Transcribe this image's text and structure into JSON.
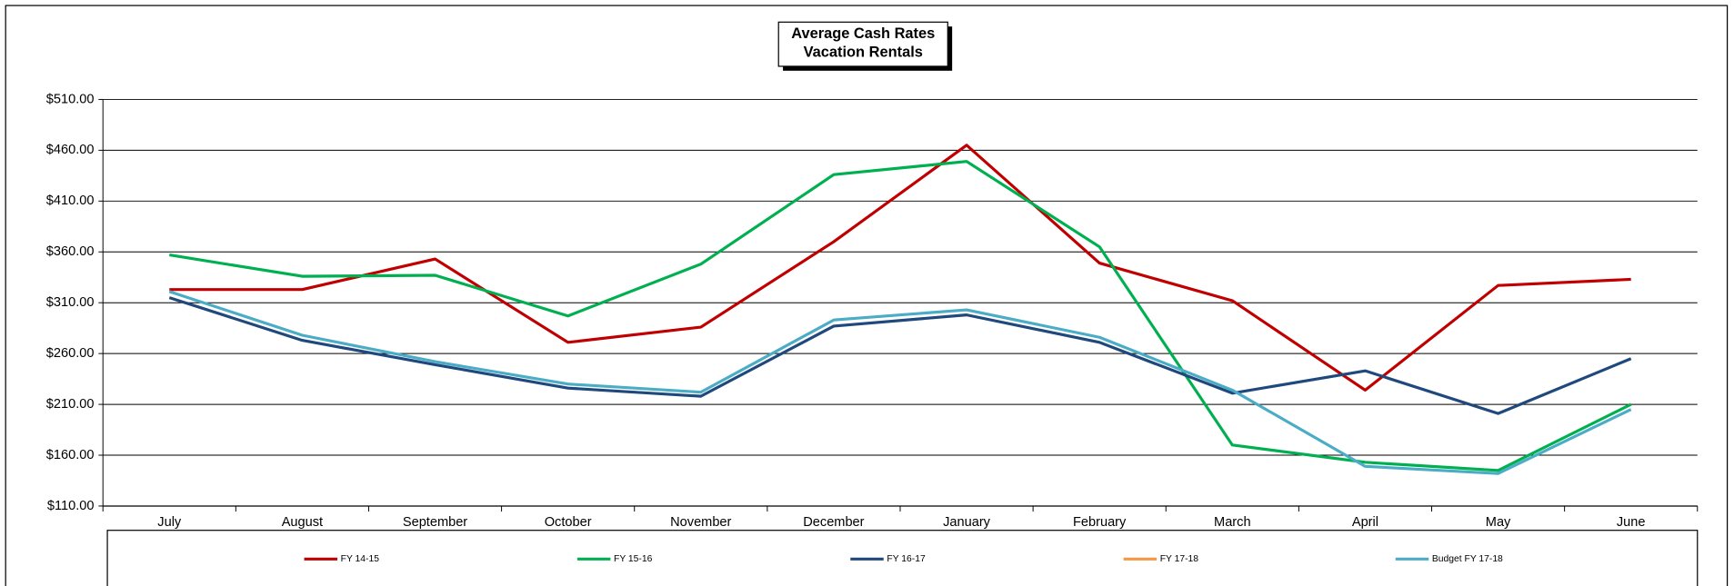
{
  "chart_data": {
    "type": "line",
    "title": "Average Cash Rates",
    "subtitle": "Vacation Rentals",
    "categories": [
      "July",
      "August",
      "September",
      "October",
      "November",
      "December",
      "January",
      "February",
      "March",
      "April",
      "May",
      "June"
    ],
    "series": [
      {
        "name": "FY 14-15",
        "color": "#c00000",
        "values": [
          323,
          323,
          353,
          271,
          286,
          370,
          465,
          349,
          312,
          224,
          327,
          333
        ]
      },
      {
        "name": "FY 15-16",
        "color": "#00b050",
        "values": [
          357,
          336,
          337,
          297,
          348,
          436,
          449,
          365,
          170,
          153,
          145,
          210
        ]
      },
      {
        "name": "FY 16-17",
        "color": "#1f497d",
        "values": [
          315,
          273,
          249,
          226,
          218,
          287,
          298,
          271,
          221,
          243,
          201,
          255
        ]
      },
      {
        "name": "FY 17-18",
        "color": "#f79646",
        "values": [
          null,
          null,
          null,
          null,
          null,
          null,
          null,
          null,
          null,
          null,
          null,
          null
        ]
      },
      {
        "name": "Budget FY 17-18",
        "color": "#4bacc6",
        "values": [
          321,
          278,
          252,
          230,
          222,
          293,
          303,
          276,
          224,
          149,
          142,
          205
        ]
      }
    ],
    "ylim": [
      110,
      510
    ],
    "yticks": [
      {
        "value": 110,
        "label": "$110.00"
      },
      {
        "value": 160,
        "label": "$160.00"
      },
      {
        "value": 210,
        "label": "$210.00"
      },
      {
        "value": 260,
        "label": "$260.00"
      },
      {
        "value": 310,
        "label": "$310.00"
      },
      {
        "value": 360,
        "label": "$360.00"
      },
      {
        "value": 410,
        "label": "$410.00"
      },
      {
        "value": 460,
        "label": "$460.00"
      },
      {
        "value": 510,
        "label": "$510.00"
      }
    ],
    "grid": true
  }
}
